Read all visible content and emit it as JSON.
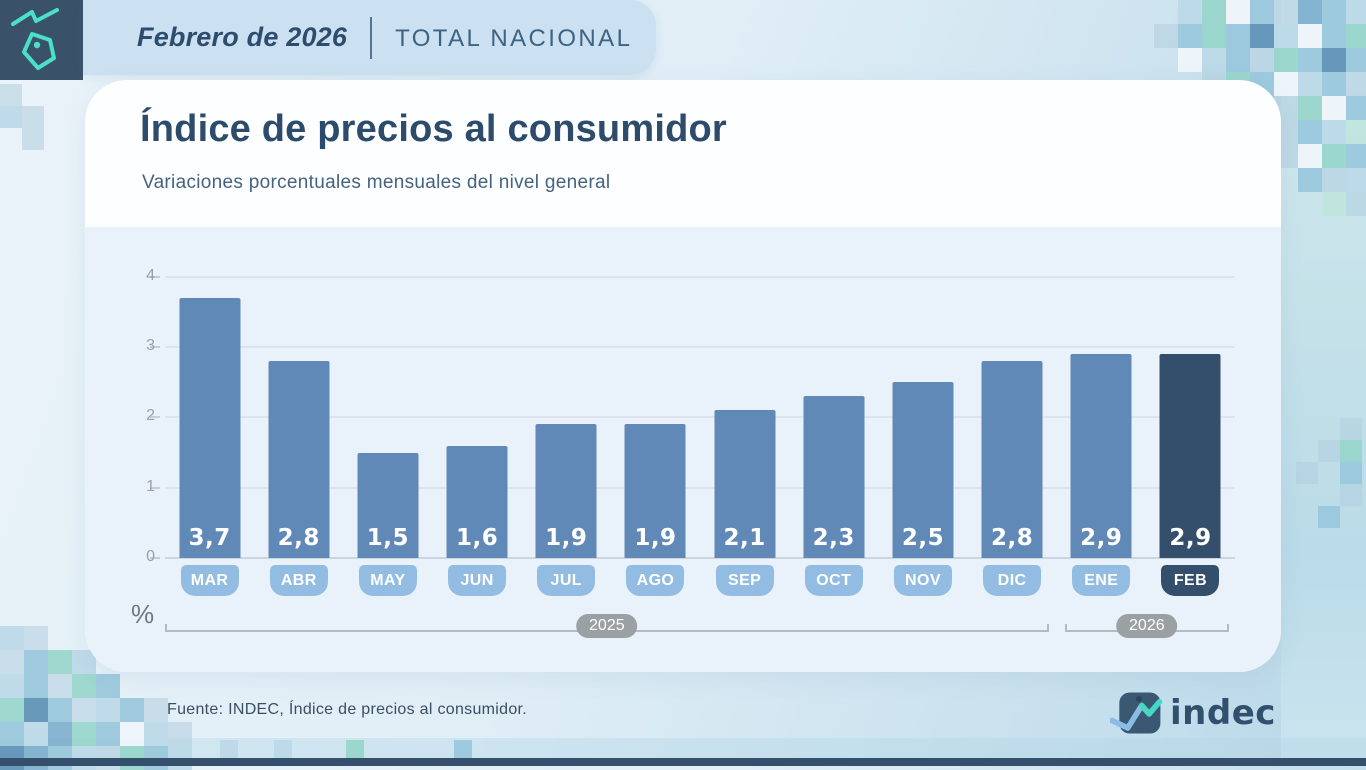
{
  "header": {
    "period": "Febrero de 2026",
    "scope": "TOTAL NACIONAL"
  },
  "title": "Índice de precios al consumidor",
  "subtitle": "Variaciones porcentuales mensuales del nivel general",
  "chart_data": {
    "type": "bar",
    "title": "Índice de precios al consumidor",
    "subtitle": "Variaciones porcentuales mensuales del nivel general",
    "unit": "%",
    "categories": [
      "MAR",
      "ABR",
      "MAY",
      "JUN",
      "JUL",
      "AGO",
      "SEP",
      "OCT",
      "NOV",
      "DIC",
      "ENE",
      "FEB"
    ],
    "values": [
      3.7,
      2.8,
      1.5,
      1.6,
      1.9,
      1.9,
      2.1,
      2.3,
      2.5,
      2.8,
      2.9,
      2.9
    ],
    "value_labels": [
      "3,7",
      "2,8",
      "1,5",
      "1,6",
      "1,9",
      "1,9",
      "2,1",
      "2,3",
      "2,5",
      "2,8",
      "2,9",
      "2,9"
    ],
    "year_groups": [
      {
        "label": "2025",
        "from": "MAR",
        "to": "DIC"
      },
      {
        "label": "2026",
        "from": "ENE",
        "to": "FEB"
      }
    ],
    "ylim": [
      0,
      4
    ],
    "yticks": [
      0,
      1,
      2,
      3,
      4
    ],
    "grid": true,
    "legend": "none",
    "highlight_index": 11,
    "colors": {
      "bar": "#6189b7",
      "bar_highlight": "#344f6b",
      "badge": "#93bce3",
      "badge_highlight": "#344f6b",
      "year_pill": "#9aa0a4",
      "accent_teal": "#4be0c9",
      "brand_navy": "#3a5269"
    }
  },
  "footer": {
    "source": "Fuente: INDEC, Índice de precios al consumidor.",
    "logo_text": "indec"
  }
}
